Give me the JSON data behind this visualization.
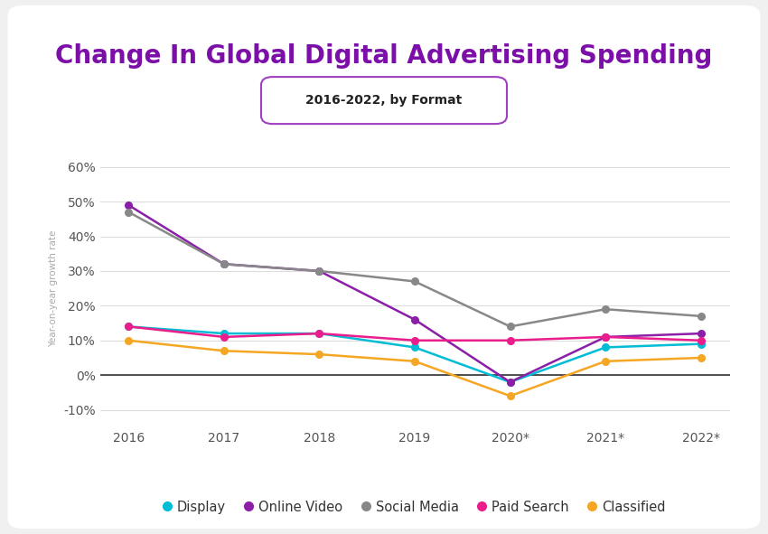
{
  "title": "Change In Global Digital Advertising Spending",
  "subtitle": "2016-2022, by Format",
  "ylabel": "Year-on-year growth rate",
  "years": [
    "2016",
    "2017",
    "2018",
    "2019",
    "2020*",
    "2021*",
    "2022*"
  ],
  "series": {
    "Display": {
      "values": [
        14,
        12,
        12,
        8,
        -2,
        8,
        9
      ],
      "color": "#00bcd4"
    },
    "Online Video": {
      "values": [
        49,
        32,
        30,
        16,
        -2,
        11,
        12
      ],
      "color": "#8b1fa8"
    },
    "Social Media": {
      "values": [
        47,
        32,
        30,
        27,
        14,
        19,
        17
      ],
      "color": "#888888"
    },
    "Paid Search": {
      "values": [
        14,
        11,
        12,
        10,
        10,
        11,
        10
      ],
      "color": "#e91e8c"
    },
    "Classified": {
      "values": [
        10,
        7,
        6,
        4,
        -6,
        4,
        5
      ],
      "color": "#f5a623"
    }
  },
  "ylim": [
    -15,
    65
  ],
  "yticks": [
    -10,
    0,
    10,
    20,
    30,
    40,
    50,
    60
  ],
  "ytick_labels": [
    "-10%",
    "0%",
    "10%",
    "20%",
    "30%",
    "40%",
    "50%",
    "60%"
  ],
  "page_bg_color": "#f0f0f0",
  "card_color": "#ffffff",
  "title_color": "#7b0fa8",
  "subtitle_bg": "#ffffff",
  "subtitle_border": "#a040c0",
  "subtitle_text_color": "#222222",
  "grid_color": "#dddddd",
  "zero_line_color": "#333333",
  "axis_label_color": "#aaaaaa",
  "tick_color": "#555555",
  "title_fontsize": 20,
  "subtitle_fontsize": 10,
  "legend_fontsize": 10.5,
  "ylabel_fontsize": 7.5,
  "tick_fontsize": 10
}
